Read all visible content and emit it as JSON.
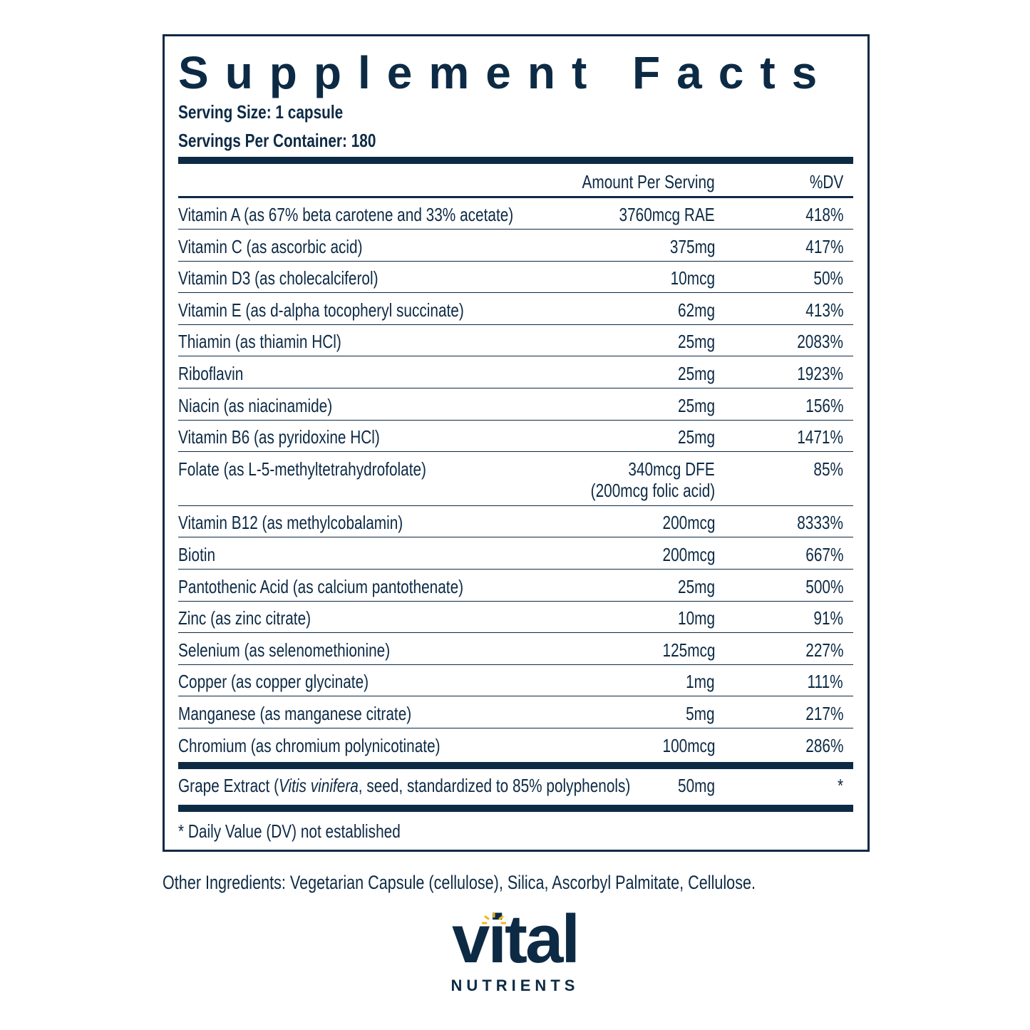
{
  "header": {
    "title": "Supplement Facts",
    "serving_size": "Serving Size: 1 capsule",
    "servings_per_container": "Servings Per Container: 180"
  },
  "table": {
    "columns": [
      "Amount Per Serving",
      "%DV"
    ],
    "rows": [
      {
        "name": "Vitamin A (as 67% beta carotene and 33% acetate)",
        "amount": "3760mcg RAE",
        "dv": "418%"
      },
      {
        "name": "Vitamin C (as ascorbic acid)",
        "amount": "375mg",
        "dv": "417%"
      },
      {
        "name": "Vitamin D3 (as cholecalciferol)",
        "amount": "10mcg",
        "dv": "50%"
      },
      {
        "name": "Vitamin E (as d-alpha tocopheryl succinate)",
        "amount": "62mg",
        "dv": "413%"
      },
      {
        "name": "Thiamin (as thiamin HCl)",
        "amount": "25mg",
        "dv": "2083%"
      },
      {
        "name": "Riboflavin",
        "amount": "25mg",
        "dv": "1923%"
      },
      {
        "name": "Niacin (as niacinamide)",
        "amount": "25mg",
        "dv": "156%"
      },
      {
        "name": "Vitamin B6 (as pyridoxine HCl)",
        "amount": "25mg",
        "dv": "1471%"
      },
      {
        "name": "Folate (as L-5-methyltetrahydrofolate)",
        "amount": "340mcg DFE",
        "amount_note": "(200mcg folic acid)",
        "dv": "85%"
      },
      {
        "name": "Vitamin B12 (as methylcobalamin)",
        "amount": "200mcg",
        "dv": "8333%"
      },
      {
        "name": "Biotin",
        "amount": "200mcg",
        "dv": "667%"
      },
      {
        "name": "Pantothenic Acid (as calcium pantothenate)",
        "amount": "25mg",
        "dv": "500%"
      },
      {
        "name": "Zinc (as zinc citrate)",
        "amount": "10mg",
        "dv": "91%"
      },
      {
        "name": "Selenium (as selenomethionine)",
        "amount": "125mcg",
        "dv": "227%"
      },
      {
        "name": "Copper (as copper glycinate)",
        "amount": "1mg",
        "dv": "111%"
      },
      {
        "name": "Manganese (as manganese citrate)",
        "amount": "5mg",
        "dv": "217%"
      },
      {
        "name": "Chromium (as chromium polynicotinate)",
        "amount": "100mcg",
        "dv": "286%"
      }
    ],
    "extra_row": {
      "name_before": "Grape Extract (",
      "name_italic": "Vitis vinifera",
      "name_after": ", seed, standardized to 85% polyphenols)",
      "amount": "50mg",
      "dv": "*"
    },
    "footnote": "* Daily Value (DV) not established"
  },
  "other_ingredients": "Other Ingredients: Vegetarian Capsule (cellulose), Silica, Ascorbyl Palmitate, Cellulose.",
  "brand": {
    "name": "vital",
    "tagline": "NUTRIENTS"
  }
}
